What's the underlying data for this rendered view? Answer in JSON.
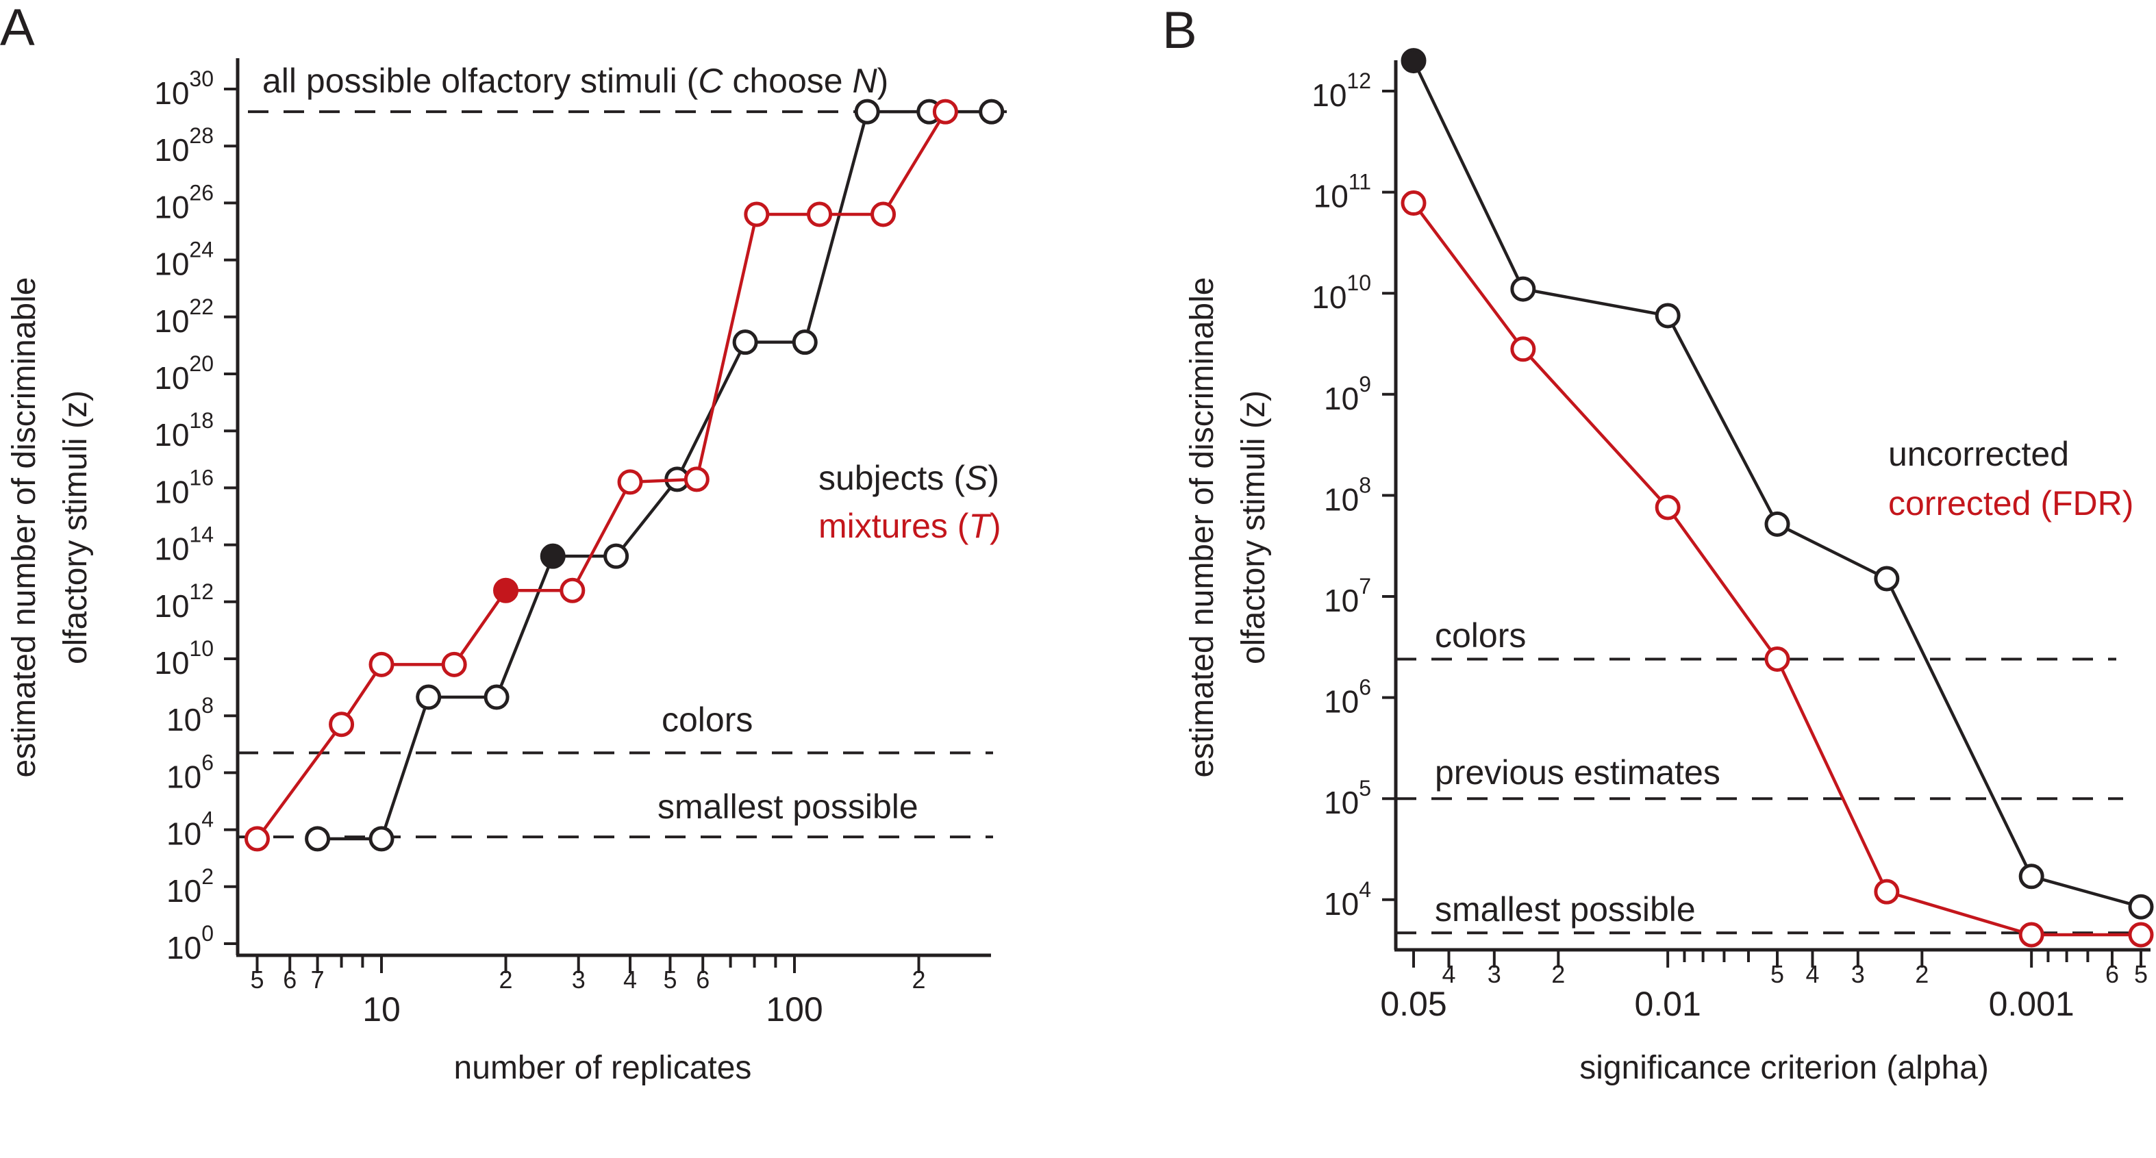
{
  "colors": {
    "black": "#231f20",
    "red": "#c4161c"
  },
  "chart_data": [
    {
      "panel_label": "A",
      "type": "line",
      "xscale": "log",
      "yscale": "log",
      "xlabel": "number of replicates",
      "ylabel": [
        "estimated number of discriminable",
        "olfactory stimuli (z)"
      ],
      "xlim": [
        4.8,
        330
      ],
      "ylim": [
        1,
        1e+30
      ],
      "x_ticks": [
        {
          "value": 5,
          "label": "5"
        },
        {
          "value": 6,
          "label": "6"
        },
        {
          "value": 7,
          "label": "7"
        },
        {
          "value": 8,
          "label": ""
        },
        {
          "value": 9,
          "label": ""
        },
        {
          "value": 10,
          "label": "10",
          "major": true
        },
        {
          "value": 20,
          "label": "2"
        },
        {
          "value": 30,
          "label": "3"
        },
        {
          "value": 40,
          "label": "4"
        },
        {
          "value": 50,
          "label": "5"
        },
        {
          "value": 60,
          "label": "6"
        },
        {
          "value": 70,
          "label": ""
        },
        {
          "value": 80,
          "label": ""
        },
        {
          "value": 90,
          "label": ""
        },
        {
          "value": 100,
          "label": "100",
          "major": true
        },
        {
          "value": 200,
          "label": "2"
        }
      ],
      "y_ticks": [
        {
          "value": 1,
          "base": "10",
          "exp": "0"
        },
        {
          "value": 100.0,
          "base": "10",
          "exp": "2"
        },
        {
          "value": 10000.0,
          "base": "10",
          "exp": "4"
        },
        {
          "value": 1000000.0,
          "base": "10",
          "exp": "6"
        },
        {
          "value": 100000000.0,
          "base": "10",
          "exp": "8"
        },
        {
          "value": 10000000000.0,
          "base": "10",
          "exp": "10"
        },
        {
          "value": 1000000000000.0,
          "base": "10",
          "exp": "12"
        },
        {
          "value": 100000000000000.0,
          "base": "10",
          "exp": "14"
        },
        {
          "value": 1e+16,
          "base": "10",
          "exp": "16"
        },
        {
          "value": 1e+18,
          "base": "10",
          "exp": "18"
        },
        {
          "value": 1e+20,
          "base": "10",
          "exp": "20"
        },
        {
          "value": 1e+22,
          "base": "10",
          "exp": "22"
        },
        {
          "value": 1e+24,
          "base": "10",
          "exp": "24"
        },
        {
          "value": 1e+26,
          "base": "10",
          "exp": "26"
        },
        {
          "value": 1e+28,
          "base": "10",
          "exp": "28"
        },
        {
          "value": 1e+30,
          "base": "10",
          "exp": "30"
        }
      ],
      "reference_lines": [
        {
          "label_parts": [
            {
              "t": "all possible olfactory stimuli ("
            },
            {
              "t": "C",
              "i": true
            },
            {
              "t": " choose "
            },
            {
              "t": "N",
              "i": true
            },
            {
              "t": ")"
            }
          ],
          "value": 1.6e+29
        },
        {
          "label_parts": [
            {
              "t": "colors"
            }
          ],
          "value": 5000000.0
        },
        {
          "label_parts": [
            {
              "t": "smallest possible"
            }
          ],
          "value": 5600.0
        }
      ],
      "series": [
        {
          "name_parts": [
            {
              "t": "subjects ("
            },
            {
              "t": "S",
              "i": true
            },
            {
              "t": ")"
            }
          ],
          "color": "#231f20",
          "x": [
            7,
            10,
            13,
            19,
            26,
            37,
            52,
            76,
            106,
            150,
            212,
            300
          ],
          "y": [
            4800.0,
            4800.0,
            450000000.0,
            450000000.0,
            40000000000000.0,
            40000000000000.0,
            2e+16,
            1.3e+21,
            1.3e+21,
            1.6e+29,
            1.6e+29,
            1.6e+29
          ],
          "filled_index": 4
        },
        {
          "name_parts": [
            {
              "t": "mixtures ("
            },
            {
              "t": "T",
              "i": true
            },
            {
              "t": ")"
            }
          ],
          "color": "#c4161c",
          "x": [
            5,
            8,
            10,
            15,
            20,
            29,
            40,
            58,
            81,
            115,
            164,
            232
          ],
          "y": [
            4800.0,
            50000000.0,
            6300000000.0,
            6300000000.0,
            2500000000000.0,
            2500000000000.0,
            1.6e+16,
            2e+16,
            4e+25,
            4e+25,
            4e+25,
            1.6e+29
          ],
          "filled_index": 4
        }
      ],
      "legend": "right-middle",
      "grid": false
    },
    {
      "panel_label": "B",
      "type": "line",
      "xscale": "log-reversed",
      "yscale": "log",
      "xlabel": "significance criterion (alpha)",
      "ylabel": [
        "estimated number of discriminable",
        "olfactory stimuli (z)"
      ],
      "xlim": [
        0.05,
        0.0005
      ],
      "ylim": [
        3500.0,
        3000000000000.0
      ],
      "x_ticks": [
        {
          "value": 0.05,
          "label": "0.05",
          "major": true
        },
        {
          "value": 0.04,
          "label": "4"
        },
        {
          "value": 0.03,
          "label": "3"
        },
        {
          "value": 0.02,
          "label": "2"
        },
        {
          "value": 0.01,
          "label": "0.01",
          "major": true
        },
        {
          "value": 0.009,
          "label": ""
        },
        {
          "value": 0.008,
          "label": ""
        },
        {
          "value": 0.007,
          "label": ""
        },
        {
          "value": 0.006,
          "label": ""
        },
        {
          "value": 0.005,
          "label": "5"
        },
        {
          "value": 0.004,
          "label": "4"
        },
        {
          "value": 0.003,
          "label": "3"
        },
        {
          "value": 0.002,
          "label": "2"
        },
        {
          "value": 0.001,
          "label": "0.001",
          "major": true
        },
        {
          "value": 0.0009,
          "label": ""
        },
        {
          "value": 0.0008,
          "label": ""
        },
        {
          "value": 0.0007,
          "label": ""
        },
        {
          "value": 0.0006,
          "label": "6"
        },
        {
          "value": 0.0005,
          "label": "5"
        }
      ],
      "y_ticks": [
        {
          "value": 10000.0,
          "base": "10",
          "exp": "4"
        },
        {
          "value": 100000.0,
          "base": "10",
          "exp": "5"
        },
        {
          "value": 1000000.0,
          "base": "10",
          "exp": "6"
        },
        {
          "value": 10000000.0,
          "base": "10",
          "exp": "7"
        },
        {
          "value": 100000000.0,
          "base": "10",
          "exp": "8"
        },
        {
          "value": 1000000000.0,
          "base": "10",
          "exp": "9"
        },
        {
          "value": 10000000000.0,
          "base": "10",
          "exp": "10"
        },
        {
          "value": 100000000000.0,
          "base": "10",
          "exp": "11"
        },
        {
          "value": 1000000000000.0,
          "base": "10",
          "exp": "12"
        }
      ],
      "reference_lines": [
        {
          "label_parts": [
            {
              "t": "colors"
            }
          ],
          "value": 2400000.0
        },
        {
          "label_parts": [
            {
              "t": "previous estimates"
            }
          ],
          "value": 100000.0
        },
        {
          "label_parts": [
            {
              "t": "smallest possible"
            }
          ],
          "value": 4700.0
        }
      ],
      "series": [
        {
          "name_parts": [
            {
              "t": "uncorrected"
            }
          ],
          "color": "#231f20",
          "x": [
            0.05,
            0.025,
            0.01,
            0.005,
            0.0025,
            0.001,
            0.0005
          ],
          "y": [
            2000000000000.0,
            11000000000.0,
            6000000000.0,
            52000000.0,
            15000000.0,
            17000.0,
            8500.0
          ],
          "filled_index": 0
        },
        {
          "name_parts": [
            {
              "t": "corrected (FDR)"
            }
          ],
          "color": "#c4161c",
          "x": [
            0.05,
            0.025,
            0.01,
            0.005,
            0.0025,
            0.001,
            0.0005
          ],
          "y": [
            78000000000.0,
            2800000000.0,
            76000000.0,
            2400000.0,
            12000.0,
            4500.0,
            4500.0
          ],
          "filled_index": -1
        }
      ],
      "legend": "right-middle",
      "grid": false
    }
  ]
}
